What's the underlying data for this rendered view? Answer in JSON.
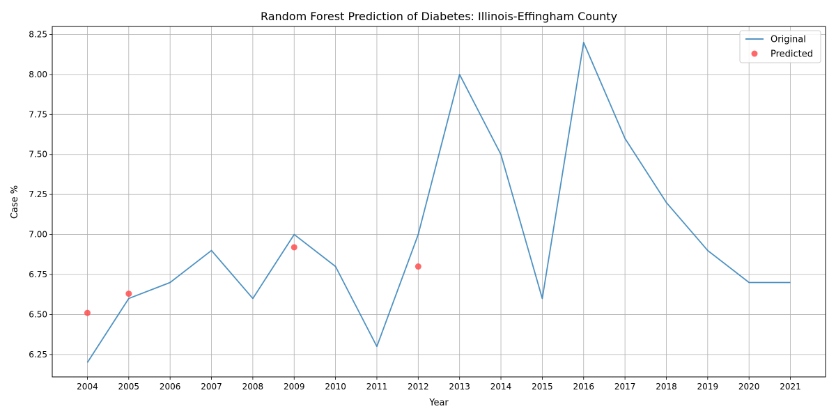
{
  "chart_data": {
    "type": "line",
    "title": "Random Forest Prediction of Diabetes: Illinois-Effingham County",
    "xlabel": "Year",
    "ylabel": "Case %",
    "x": [
      2004,
      2005,
      2006,
      2007,
      2008,
      2009,
      2010,
      2011,
      2012,
      2013,
      2014,
      2015,
      2016,
      2017,
      2018,
      2019,
      2020,
      2021
    ],
    "xlim": [
      2003.15,
      2021.85
    ],
    "ylim": [
      6.11,
      8.3
    ],
    "yticks": [
      6.25,
      6.5,
      6.75,
      7.0,
      7.25,
      7.5,
      7.75,
      8.0,
      8.25
    ],
    "ytick_labels": [
      "6.25",
      "6.50",
      "6.75",
      "7.00",
      "7.25",
      "7.50",
      "7.75",
      "8.00",
      "8.25"
    ],
    "grid": true,
    "legend_position": "top-right",
    "series": [
      {
        "name": "Original",
        "kind": "line",
        "color": "#3b86bb",
        "x": [
          2004,
          2005,
          2006,
          2007,
          2008,
          2009,
          2010,
          2011,
          2012,
          2013,
          2014,
          2015,
          2016,
          2017,
          2018,
          2019,
          2020,
          2021
        ],
        "values": [
          6.2,
          6.6,
          6.7,
          6.9,
          6.6,
          7.0,
          6.8,
          6.3,
          7.0,
          8.0,
          7.5,
          6.6,
          8.2,
          7.6,
          7.2,
          6.9,
          6.7,
          6.7
        ]
      },
      {
        "name": "Predicted",
        "kind": "scatter",
        "color": "#ff4d4d",
        "x": [
          2004,
          2005,
          2009,
          2012
        ],
        "values": [
          6.51,
          6.63,
          6.92,
          6.8
        ]
      }
    ]
  }
}
